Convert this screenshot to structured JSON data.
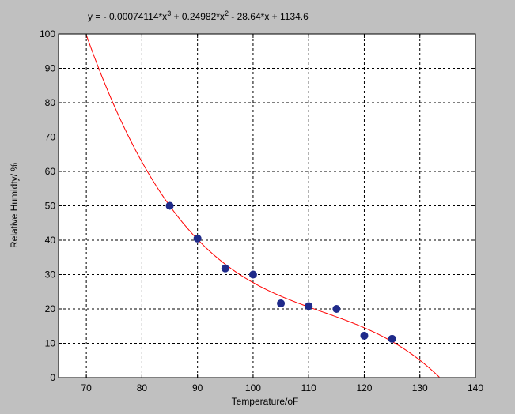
{
  "chart_data": {
    "type": "scatter",
    "title": {
      "prefix": "y = - 0.00074114*x",
      "exp1": "3",
      "mid": " + 0.24982*x",
      "exp2": "2",
      "suffix": " - 28.64*x + 1134.6"
    },
    "xlabel": "Temperature/oF",
    "ylabel": "Relative Humidty/ %",
    "xlim": [
      65,
      140
    ],
    "ylim": [
      0,
      100
    ],
    "xticks": [
      70,
      80,
      90,
      100,
      110,
      120,
      130,
      140
    ],
    "yticks": [
      0,
      10,
      20,
      30,
      40,
      50,
      60,
      70,
      80,
      90,
      100
    ],
    "grid": true,
    "grid_style": "dashed",
    "series": [
      {
        "kind": "points",
        "marker": "circle",
        "color": "#1f2a8a",
        "x": [
          85,
          90,
          95,
          100,
          105,
          110,
          115,
          120,
          125
        ],
        "y": [
          50,
          40.5,
          31.8,
          30,
          21.6,
          20.8,
          20,
          12.2,
          11.3
        ]
      },
      {
        "kind": "fit-curve",
        "color": "#ff0000",
        "coefficients": [
          -0.00074114,
          0.24982,
          -28.64,
          1134.6
        ]
      }
    ]
  }
}
